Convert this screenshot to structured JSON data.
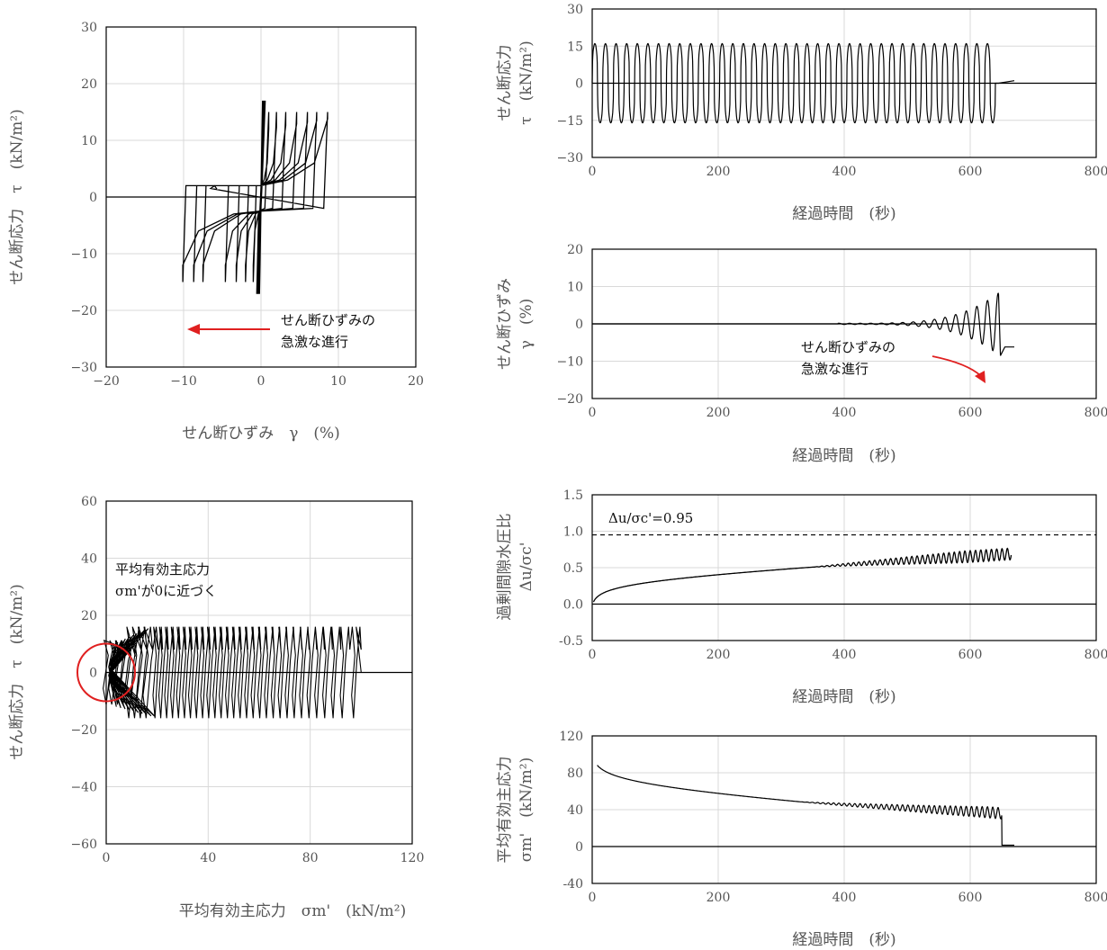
{
  "chart_data": [
    {
      "id": "hysteresis",
      "type": "line",
      "xlabel": "せん断ひずみ　γ　(%)",
      "ylabel": "せん断応力　τ　(kN/m²)",
      "xlim": [
        -20,
        20
      ],
      "ylim": [
        -30,
        30
      ],
      "xticks": [
        "−20",
        "−10",
        "0",
        "10",
        "20"
      ],
      "yticks": [
        "30",
        "20",
        "10",
        "0",
        "−10",
        "−20",
        "−30"
      ],
      "grid": true,
      "annotation": {
        "lines": [
          "せん断ひずみの",
          "急激な進行"
        ],
        "arrow_color": "#e02020"
      }
    },
    {
      "id": "stress_time",
      "type": "line",
      "xlabel": "経過時間　(秒)",
      "ylabel": [
        "せん断応力",
        "τ　(kN/m²)"
      ],
      "xlim": [
        0,
        800
      ],
      "ylim": [
        -30,
        30
      ],
      "xticks": [
        "0",
        "200",
        "400",
        "600",
        "800"
      ],
      "yticks": [
        "30",
        "15",
        "0",
        "−15",
        "−30"
      ],
      "cycles": 38,
      "amplitude": 16,
      "end_time": 640,
      "final_time": 670,
      "grid": true
    },
    {
      "id": "strain_time",
      "type": "line",
      "xlabel": "経過時間　(秒)",
      "ylabel": [
        "せん断ひずみ",
        "γ　(%)"
      ],
      "xlim": [
        0,
        800
      ],
      "ylim": [
        -20,
        20
      ],
      "xticks": [
        "0",
        "200",
        "400",
        "600",
        "800"
      ],
      "yticks": [
        "20",
        "10",
        "0",
        "−10",
        "−20"
      ],
      "final_value": -6.2,
      "peak_value": 8,
      "grid": true,
      "annotation": {
        "lines": [
          "せん断ひずみの",
          "急激な進行"
        ],
        "arrow_color": "#e02020"
      }
    },
    {
      "id": "pore_pressure",
      "type": "line",
      "xlabel": "経過時間　(秒)",
      "ylabel": [
        "過剰間隙水圧比",
        "Δu/σc'"
      ],
      "xlim": [
        0,
        800
      ],
      "ylim": [
        -0.5,
        1.5
      ],
      "xticks": [
        "0",
        "200",
        "400",
        "600",
        "800"
      ],
      "yticks": [
        "1.5",
        "1.0",
        "0.5",
        "0.0",
        "-0.5"
      ],
      "threshold": 0.95,
      "threshold_label": "Δu/σc'=0.95",
      "grid": true
    },
    {
      "id": "mean_stress",
      "type": "line",
      "xlabel": "経過時間　(秒)",
      "ylabel": [
        "平均有効主応力",
        "σm'　(kN/m²)"
      ],
      "xlim": [
        0,
        800
      ],
      "ylim": [
        -40,
        120
      ],
      "xticks": [
        "0",
        "200",
        "400",
        "600",
        "800"
      ],
      "yticks": [
        "120",
        "80",
        "40",
        "0",
        "-40"
      ],
      "start_value": 100,
      "end_time": 670,
      "grid": true
    },
    {
      "id": "stress_path",
      "type": "line",
      "xlabel": "平均有効主応力　σm'　(kN/m²)",
      "ylabel": "せん断応力　τ　(kN/m²)",
      "xlim": [
        0,
        120
      ],
      "ylim": [
        -60,
        60
      ],
      "xticks": [
        "0",
        "40",
        "80",
        "120"
      ],
      "yticks": [
        "60",
        "40",
        "20",
        "0",
        "−20",
        "−40",
        "−60"
      ],
      "grid": true,
      "annotation": {
        "lines": [
          "平均有効主応力",
          "σm'が0に近づく"
        ],
        "marker_color": "#e02020"
      }
    }
  ]
}
